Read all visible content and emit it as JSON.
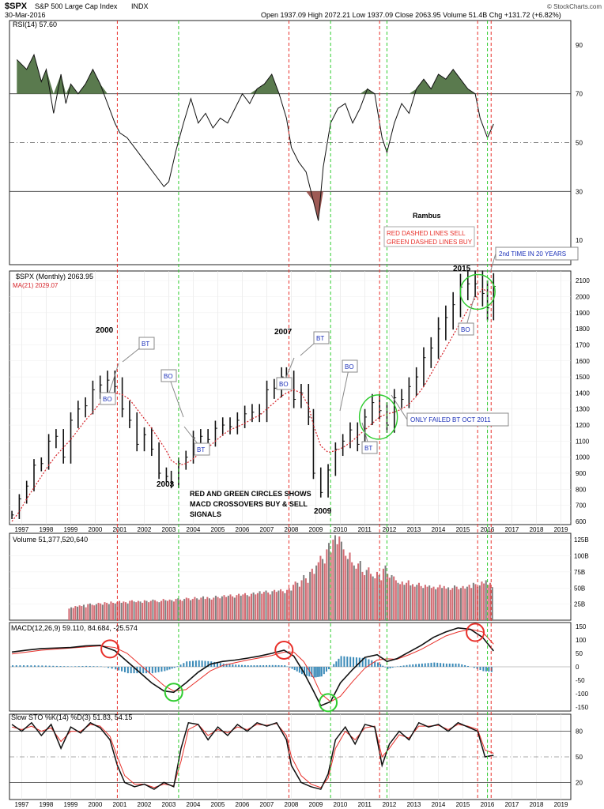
{
  "header": {
    "symbol": "$SPX",
    "name": "S&P 500 Large Cap Index",
    "exchange": "INDX",
    "date": "30-Mar-2016",
    "stats": "Open 1937.09  High 2072.21  Low 1937.09  Close 2063.95  Volume 51.4B  Chg +131.72 (+6.82%)",
    "watermark": "© StockCharts.com"
  },
  "chart_data": [
    {
      "type": "line",
      "panel": "rsi",
      "title": "RSI(14) 57.60",
      "y_ticks": [
        10,
        30,
        50,
        70,
        90
      ],
      "ylim": [
        0,
        100
      ],
      "x": [
        1996.8,
        1997.2,
        1997.5,
        1997.8,
        1998.0,
        1998.3,
        1998.6,
        1998.8,
        1999.0,
        1999.3,
        1999.6,
        1999.9,
        2000.2,
        2000.5,
        2000.8,
        2001.0,
        2001.3,
        2001.6,
        2001.9,
        2002.2,
        2002.5,
        2002.8,
        2003.0,
        2003.3,
        2003.6,
        2003.9,
        2004.2,
        2004.5,
        2004.8,
        2005.1,
        2005.4,
        2005.7,
        2006.0,
        2006.3,
        2006.6,
        2006.9,
        2007.2,
        2007.5,
        2007.8,
        2008.0,
        2008.3,
        2008.6,
        2008.9,
        2009.1,
        2009.3,
        2009.6,
        2009.9,
        2010.2,
        2010.5,
        2010.8,
        2011.1,
        2011.4,
        2011.7,
        2011.9,
        2012.2,
        2012.5,
        2012.8,
        2013.1,
        2013.4,
        2013.7,
        2014.0,
        2014.3,
        2014.6,
        2014.9,
        2015.2,
        2015.5,
        2015.7,
        2016.0,
        2016.25
      ],
      "values": [
        84,
        80,
        86,
        75,
        80,
        62,
        78,
        66,
        74,
        70,
        74,
        80,
        74,
        66,
        58,
        54,
        52,
        48,
        44,
        40,
        36,
        32,
        34,
        47,
        58,
        68,
        58,
        62,
        56,
        60,
        58,
        64,
        70,
        66,
        72,
        74,
        78,
        70,
        60,
        48,
        42,
        38,
        26,
        18,
        40,
        58,
        64,
        66,
        58,
        64,
        72,
        70,
        52,
        46,
        58,
        66,
        62,
        72,
        76,
        72,
        78,
        76,
        80,
        76,
        72,
        70,
        60,
        52,
        57.6
      ],
      "shade_above": 70,
      "shade_below": 30
    },
    {
      "type": "bar",
      "panel": "price",
      "title": "$SPX (Monthly) 2063.95",
      "ma_label": "MA(21) 2029.07",
      "y_ticks": [
        600,
        700,
        800,
        900,
        1000,
        1100,
        1200,
        1300,
        1400,
        1500,
        1600,
        1700,
        1800,
        1900,
        2000,
        2100
      ],
      "ylim": [
        580,
        2160
      ],
      "x": [
        1996.6,
        1996.9,
        1997.2,
        1997.5,
        1997.8,
        1998.1,
        1998.4,
        1998.7,
        1999.0,
        1999.3,
        1999.6,
        1999.9,
        2000.2,
        2000.5,
        2000.8,
        2001.1,
        2001.4,
        2001.7,
        2002.0,
        2002.3,
        2002.6,
        2002.9,
        2003.1,
        2003.4,
        2003.7,
        2004.0,
        2004.3,
        2004.6,
        2004.9,
        2005.2,
        2005.5,
        2005.8,
        2006.1,
        2006.4,
        2006.7,
        2007.0,
        2007.3,
        2007.6,
        2007.8,
        2008.1,
        2008.4,
        2008.7,
        2008.9,
        2009.2,
        2009.5,
        2009.8,
        2010.1,
        2010.4,
        2010.7,
        2011.0,
        2011.3,
        2011.6,
        2011.9,
        2012.2,
        2012.5,
        2012.8,
        2013.1,
        2013.4,
        2013.7,
        2014.0,
        2014.3,
        2014.6,
        2014.9,
        2015.2,
        2015.5,
        2015.8,
        2016.0,
        2016.25
      ],
      "close": [
        640,
        740,
        820,
        950,
        960,
        1100,
        1130,
        1000,
        1230,
        1300,
        1320,
        1420,
        1450,
        1480,
        1440,
        1300,
        1230,
        1080,
        1140,
        1050,
        900,
        880,
        840,
        960,
        1000,
        1120,
        1130,
        1110,
        1180,
        1200,
        1190,
        1230,
        1270,
        1280,
        1270,
        1420,
        1430,
        1500,
        1480,
        1360,
        1400,
        1250,
        900,
        780,
        920,
        1050,
        1100,
        1170,
        1080,
        1250,
        1340,
        1290,
        1200,
        1370,
        1360,
        1440,
        1500,
        1620,
        1680,
        1800,
        1870,
        1950,
        2060,
        2080,
        2080,
        2020,
        1930,
        2063.95
      ],
      "ma": [
        600,
        660,
        740,
        810,
        880,
        950,
        1010,
        1060,
        1110,
        1170,
        1230,
        1280,
        1340,
        1390,
        1400,
        1390,
        1360,
        1300,
        1240,
        1180,
        1110,
        1040,
        980,
        950,
        960,
        990,
        1030,
        1060,
        1100,
        1140,
        1170,
        1190,
        1210,
        1240,
        1260,
        1300,
        1340,
        1380,
        1400,
        1420,
        1400,
        1320,
        1200,
        1070,
        1030,
        1040,
        1060,
        1090,
        1130,
        1170,
        1210,
        1250,
        1270,
        1280,
        1300,
        1330,
        1380,
        1440,
        1520,
        1600,
        1680,
        1760,
        1840,
        1920,
        1990,
        2050,
        2030,
        2029.07
      ],
      "events": {
        "sell_red": [
          2000.9,
          2007.9,
          2011.6,
          2015.6,
          2016.15
        ],
        "buy_green": [
          2003.4,
          2009.6,
          2011.9,
          2016.0
        ]
      }
    },
    {
      "type": "bar",
      "panel": "volume",
      "title": "Volume 51,377,520,640",
      "y_ticks": [
        "25B",
        "50B",
        "75B",
        "100B",
        "125B"
      ],
      "ylim": [
        0,
        135
      ],
      "start_year": 1998.9,
      "end_year": 2016.25,
      "values": [
        18,
        20,
        19,
        22,
        21,
        23,
        22,
        24,
        20,
        25,
        26,
        24,
        23,
        25,
        27,
        26,
        24,
        28,
        27,
        25,
        29,
        27,
        26,
        28,
        30,
        27,
        29,
        28,
        26,
        30,
        31,
        29,
        28,
        30,
        29,
        27,
        31,
        30,
        28,
        30,
        32,
        31,
        29,
        28,
        30,
        33,
        31,
        30,
        32,
        31,
        29,
        33,
        34,
        32,
        30,
        33,
        35,
        34,
        31,
        33,
        36,
        34,
        32,
        35,
        37,
        33,
        36,
        34,
        32,
        35,
        38,
        36,
        34,
        37,
        39,
        36,
        38,
        40,
        37,
        35,
        39,
        41,
        38,
        40,
        42,
        39,
        37,
        41,
        43,
        40,
        42,
        45,
        41,
        44,
        46,
        43,
        40,
        45,
        47,
        44,
        46,
        48,
        45,
        42,
        47,
        50,
        46,
        55,
        60,
        58,
        52,
        62,
        70,
        65,
        58,
        75,
        80,
        72,
        85,
        90,
        100,
        95,
        88,
        110,
        120,
        105,
        125,
        132,
        118,
        130,
        122,
        110,
        100,
        95,
        105,
        90,
        85,
        80,
        88,
        92,
        75,
        70,
        78,
        82,
        72,
        68,
        65,
        75,
        70,
        62,
        80,
        85,
        72,
        66,
        70,
        68,
        62,
        58,
        56,
        60,
        55,
        58,
        62,
        54,
        56,
        52,
        55,
        58,
        53,
        50,
        55,
        52,
        54,
        50,
        52,
        48,
        51,
        55,
        50,
        53,
        49,
        51,
        47,
        50,
        54,
        52,
        48,
        50,
        53,
        49,
        52,
        55,
        50,
        58,
        56,
        52,
        54,
        60,
        57,
        62,
        55,
        58,
        51.4
      ]
    },
    {
      "type": "line",
      "panel": "macd",
      "title": "MACD(12,26,9) 59.110, 84.684, -25.574",
      "y_ticks": [
        -150,
        -100,
        -50,
        0,
        50,
        100,
        150
      ],
      "ylim": [
        -165,
        165
      ],
      "x": [
        1996.6,
        1997.2,
        1997.8,
        1998.4,
        1999.0,
        1999.6,
        2000.2,
        2000.8,
        2001.3,
        2001.8,
        2002.3,
        2002.8,
        2003.2,
        2003.7,
        2004.2,
        2004.7,
        2005.2,
        2005.7,
        2006.2,
        2006.7,
        2007.2,
        2007.7,
        2008.1,
        2008.5,
        2008.9,
        2009.2,
        2009.6,
        2010.0,
        2010.5,
        2011.0,
        2011.5,
        2011.9,
        2012.3,
        2012.8,
        2013.3,
        2013.8,
        2014.3,
        2014.8,
        2015.3,
        2015.8,
        2016.25
      ],
      "macd": [
        55,
        62,
        68,
        70,
        72,
        78,
        80,
        60,
        20,
        -20,
        -60,
        -90,
        -95,
        -60,
        -20,
        10,
        20,
        25,
        32,
        40,
        50,
        62,
        40,
        -20,
        -90,
        -145,
        -130,
        -60,
        -10,
        35,
        45,
        20,
        30,
        55,
        80,
        110,
        130,
        145,
        140,
        110,
        59.11
      ],
      "signal": [
        48,
        55,
        62,
        66,
        70,
        74,
        78,
        72,
        50,
        10,
        -30,
        -70,
        -90,
        -85,
        -50,
        -15,
        5,
        15,
        25,
        33,
        42,
        55,
        55,
        20,
        -40,
        -100,
        -130,
        -110,
        -55,
        -5,
        25,
        30,
        28,
        45,
        65,
        90,
        115,
        130,
        140,
        130,
        84.684
      ],
      "crossovers_sell": [
        2000.6,
        2007.7,
        2015.5
      ],
      "crossovers_buy": [
        2003.2,
        2009.5
      ]
    },
    {
      "type": "line",
      "panel": "sto",
      "title": "Slow STO %K(14) %D(3) 51.83, 54.15",
      "y_ticks": [
        20,
        50,
        80
      ],
      "ylim": [
        0,
        100
      ],
      "x": [
        1996.6,
        1997.0,
        1997.4,
        1997.8,
        1998.2,
        1998.6,
        1999.0,
        1999.4,
        1999.8,
        2000.2,
        2000.6,
        2000.9,
        2001.2,
        2001.6,
        2002.0,
        2002.4,
        2002.8,
        2003.2,
        2003.5,
        2003.8,
        2004.2,
        2004.6,
        2005.0,
        2005.4,
        2005.8,
        2006.2,
        2006.6,
        2007.0,
        2007.4,
        2007.8,
        2008.0,
        2008.4,
        2008.8,
        2009.2,
        2009.5,
        2009.8,
        2010.2,
        2010.6,
        2011.0,
        2011.4,
        2011.7,
        2012.0,
        2012.4,
        2012.8,
        2013.2,
        2013.6,
        2014.0,
        2014.4,
        2014.8,
        2015.2,
        2015.6,
        2015.9,
        2016.25
      ],
      "k": [
        88,
        80,
        90,
        75,
        88,
        60,
        85,
        78,
        90,
        84,
        70,
        40,
        20,
        15,
        18,
        12,
        20,
        15,
        60,
        90,
        88,
        70,
        85,
        75,
        88,
        80,
        90,
        86,
        90,
        70,
        40,
        20,
        15,
        12,
        30,
        70,
        85,
        65,
        88,
        85,
        40,
        65,
        80,
        70,
        90,
        85,
        88,
        80,
        90,
        85,
        80,
        50,
        51.83
      ],
      "d": [
        85,
        82,
        86,
        80,
        84,
        68,
        80,
        80,
        88,
        86,
        74,
        50,
        28,
        18,
        18,
        14,
        18,
        16,
        45,
        82,
        88,
        75,
        82,
        78,
        85,
        82,
        88,
        87,
        89,
        75,
        50,
        28,
        18,
        14,
        25,
        60,
        80,
        70,
        84,
        86,
        50,
        60,
        76,
        72,
        86,
        86,
        87,
        82,
        88,
        86,
        82,
        58,
        54.15
      ]
    }
  ],
  "x_axis_years": [
    "1997",
    "1998",
    "1999",
    "2000",
    "2001",
    "2002",
    "2003",
    "2004",
    "2005",
    "2006",
    "2007",
    "2008",
    "2009",
    "2010",
    "2011",
    "2012",
    "2013",
    "2014",
    "2015",
    "2016",
    "2017",
    "2018",
    "2019"
  ],
  "annotations": {
    "rambus": "Rambus",
    "legend_sell": "RED DASHED LINES SELL",
    "legend_buy": "GREEN DASHED LINES BUY",
    "second_time": "2nd TIME IN 20 YEARS",
    "only_failed": "ONLY FAILED BT OCT 2011",
    "circles_note_1": "RED AND GREEN CIRCLES SHOWS",
    "circles_note_2": "MACD CROSSOVERS BUY & SELL",
    "circles_note_3": "SIGNALS",
    "year_2000": "2000",
    "year_2003": "2003",
    "year_2007": "2007",
    "year_2009": "2009",
    "year_2015": "2015",
    "bo": "BO",
    "bt": "BT"
  },
  "colors": {
    "sell": "#e8302a",
    "buy": "#2ecc2e",
    "ma": "#d6242a",
    "rsi_fill_high": "#5a7a4e",
    "rsi_fill_low": "#9e5a55",
    "vol_up": "#d36a72",
    "vol_down": "#7f7f7f",
    "macd_hist": "#3a8ab8",
    "note_blue": "#1a2fb8"
  }
}
